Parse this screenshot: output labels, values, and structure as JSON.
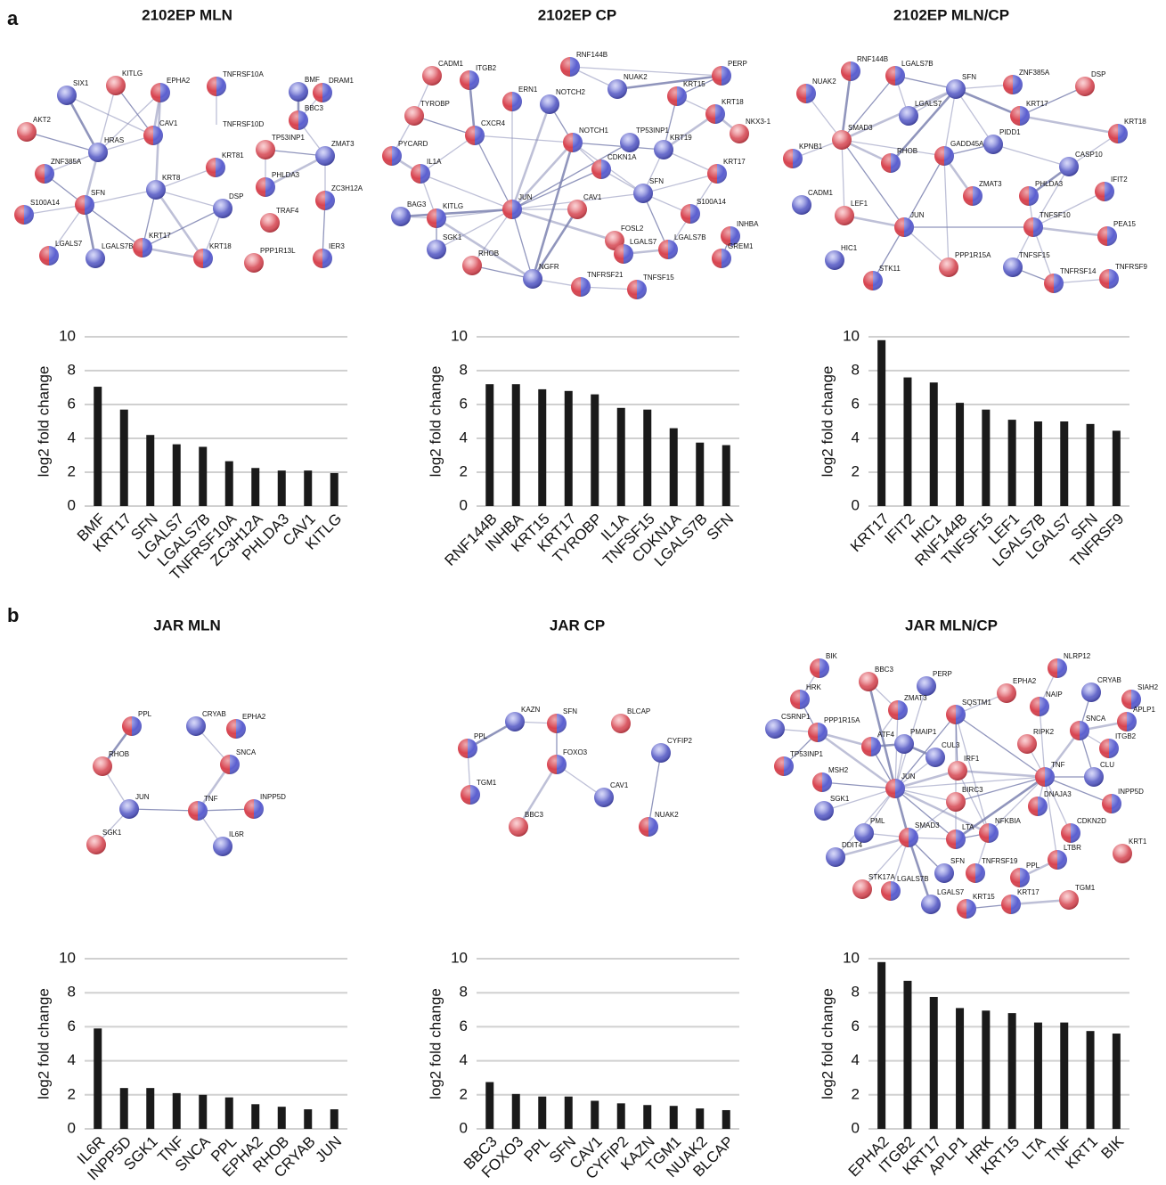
{
  "panel_labels": [
    "a",
    "b"
  ],
  "networks": [
    {
      "title": "2102EP MLN",
      "nodes": [
        "SIX1",
        "KITLG",
        "EPHA2",
        "TNFRSF10A",
        "BMF",
        "DRAM1",
        "AKT2",
        "CAV1",
        "HRAS",
        "TNFRSF10D",
        "BBC3",
        "TP53INP1",
        "ZMAT3",
        "ZNF385A",
        "KRT81",
        "SFN",
        "KRT8",
        "PHLDA3",
        "ZC3H12A",
        "S100A14",
        "DSP",
        "TRAF4",
        "KRT17",
        "LGALS7",
        "LGALS7B",
        "KRT18",
        "PPP1R13L",
        "IER3"
      ]
    },
    {
      "title": "2102EP CP",
      "nodes": [
        "CADM1",
        "ITGB2",
        "RNF144B",
        "NUAK2",
        "PERP",
        "TYROBP",
        "ERN1",
        "NOTCH2",
        "KRT15",
        "KRT18",
        "NKX3-1",
        "TP53INP1",
        "PYCARD",
        "CXCR4",
        "NOTCH1",
        "KRT19",
        "IL1A",
        "CDKN1A",
        "KRT17",
        "SFN",
        "CAV1",
        "JUN",
        "KITLG",
        "BAG3",
        "S100A14",
        "FOSL2",
        "INHBA",
        "SGK1",
        "LGALS7",
        "LGALS7B",
        "RHOB",
        "NGFR",
        "GREM1",
        "TNFRSF21",
        "TNFSF15"
      ]
    },
    {
      "title": "2102EP MLN/CP",
      "nodes": [
        "RNF144B",
        "LGALS7B",
        "SFN",
        "ZNF385A",
        "DSP",
        "NUAK2",
        "LGALS7",
        "KRT17",
        "KRT18",
        "SMAD3",
        "PIDD1",
        "KPNB1",
        "GADD45A",
        "RHOB",
        "CASP10",
        "IFIT2",
        "ZMAT3",
        "PHLDA3",
        "CADM1",
        "LEF1",
        "JUN",
        "TNFSF10",
        "HIC1",
        "PEA15",
        "PPP1R15A",
        "STK11",
        "TNFSF15",
        "TNFRSF14",
        "TNFRSF9"
      ]
    },
    {
      "title": "JAR MLN",
      "nodes": [
        "PPL",
        "CRYAB",
        "EPHA2",
        "RHOB",
        "SNCA",
        "JUN",
        "TNF",
        "INPP5D",
        "SGK1",
        "IL6R"
      ]
    },
    {
      "title": "JAR CP",
      "nodes": [
        "KAZN",
        "SFN",
        "BLCAP",
        "PPL",
        "CYFIP2",
        "FOXO3",
        "TGM1",
        "BBC3",
        "CAV1",
        "NUAK2"
      ]
    },
    {
      "title": "JAR MLN/CP",
      "nodes": [
        "BIK",
        "BBC3",
        "NLRP12",
        "PERP",
        "HRK",
        "ZMAT3",
        "EPHA2",
        "CRYAB",
        "SIAH2",
        "NAIP",
        "SQSTM1",
        "CSRNP1",
        "PPP1R15A",
        "APLP1",
        "SNCA",
        "PMAIP1",
        "RIPK2",
        "ATF4",
        "ITGB2",
        "CUL3",
        "TP53INP1",
        "IRF1",
        "TNF",
        "CLU",
        "MSH2",
        "JUN",
        "BIRC3",
        "SGK1",
        "INPP5D",
        "DNAJA3",
        "CDKN2D",
        "PML",
        "SMAD3",
        "NFKBIA",
        "LTA",
        "DDIT4",
        "KRT1",
        "LTBR",
        "TNFRSF19",
        "SFN",
        "PPL",
        "STK17A",
        "LGALS7B",
        "LGALS7",
        "KRT15",
        "KRT17",
        "TGM1"
      ]
    }
  ],
  "chart_data": [
    {
      "type": "bar",
      "y_label": "log2 fold change",
      "color": "#1a1a1a",
      "grid": true,
      "ylim": [
        0,
        10
      ],
      "yticks": [
        0,
        2,
        4,
        6,
        8,
        10
      ],
      "categories": [
        "BMF",
        "KRT17",
        "SFN",
        "LGALS7",
        "LGALS7B",
        "TNFRSF10A",
        "ZC3H12A",
        "PHLDA3",
        "CAV1",
        "KITLG"
      ],
      "values": [
        7.05,
        5.7,
        4.2,
        3.65,
        3.5,
        2.65,
        2.25,
        2.1,
        2.1,
        1.95
      ]
    },
    {
      "type": "bar",
      "y_label": "log2 fold change",
      "color": "#1a1a1a",
      "grid": true,
      "ylim": [
        0,
        10
      ],
      "yticks": [
        0,
        2,
        4,
        6,
        8,
        10
      ],
      "categories": [
        "RNF144B",
        "INHBA",
        "KRT15",
        "KRT17",
        "TYROBP",
        "IL1A",
        "TNFSF15",
        "CDKN1A",
        "LGALS7B",
        "SFN"
      ],
      "values": [
        7.2,
        7.2,
        6.9,
        6.8,
        6.6,
        5.8,
        5.7,
        4.6,
        3.75,
        3.6
      ]
    },
    {
      "type": "bar",
      "y_label": "log2 fold change",
      "color": "#1a1a1a",
      "grid": true,
      "ylim": [
        0,
        10
      ],
      "yticks": [
        0,
        2,
        4,
        6,
        8,
        10
      ],
      "categories": [
        "KRT17",
        "IFIT2",
        "HIC1",
        "RNF144B",
        "TNFSF15",
        "LEF1",
        "LGALS7B",
        "LGALS7",
        "SFN",
        "TNFRSF9"
      ],
      "values": [
        9.8,
        7.6,
        7.3,
        6.1,
        5.7,
        5.1,
        5.0,
        5.0,
        4.85,
        4.45
      ]
    },
    {
      "type": "bar",
      "y_label": "log2 fold change",
      "color": "#1a1a1a",
      "grid": true,
      "ylim": [
        0,
        10
      ],
      "yticks": [
        0,
        2,
        4,
        6,
        8,
        10
      ],
      "categories": [
        "IL6R",
        "INPP5D",
        "SGK1",
        "TNF",
        "SNCA",
        "PPL",
        "EPHA2",
        "RHOB",
        "CRYAB",
        "JUN"
      ],
      "values": [
        5.9,
        2.4,
        2.4,
        2.1,
        2.0,
        1.85,
        1.45,
        1.3,
        1.15,
        1.15
      ]
    },
    {
      "type": "bar",
      "y_label": "log2 fold change",
      "color": "#1a1a1a",
      "grid": true,
      "ylim": [
        0,
        10
      ],
      "yticks": [
        0,
        2,
        4,
        6,
        8,
        10
      ],
      "categories": [
        "BBC3",
        "FOXO3",
        "PPL",
        "SFN",
        "CAV1",
        "CYFIP2",
        "KAZN",
        "TGM1",
        "NUAK2",
        "BLCAP"
      ],
      "values": [
        2.75,
        2.05,
        1.9,
        1.9,
        1.65,
        1.5,
        1.4,
        1.35,
        1.2,
        1.1
      ]
    },
    {
      "type": "bar",
      "y_label": "log2 fold change",
      "color": "#1a1a1a",
      "grid": true,
      "ylim": [
        0,
        10
      ],
      "yticks": [
        0,
        2,
        4,
        6,
        8,
        10
      ],
      "categories": [
        "EPHA2",
        "ITGB2",
        "KRT17",
        "APLP1",
        "HRK",
        "KRT15",
        "LTA",
        "TNF",
        "KRT1",
        "BIK"
      ],
      "values": [
        9.8,
        8.7,
        7.75,
        7.1,
        6.95,
        6.8,
        6.25,
        6.25,
        5.75,
        5.6
      ]
    }
  ]
}
